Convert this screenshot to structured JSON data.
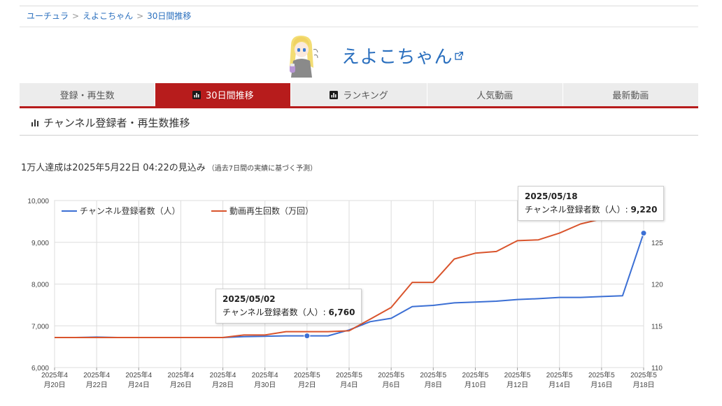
{
  "breadcrumb": {
    "items": [
      "ユーチュラ",
      "えよこちゃん",
      "30日間推移"
    ]
  },
  "channel": {
    "name": "えよこちゃん"
  },
  "tabs": [
    {
      "label": "登録・再生数",
      "icon": ""
    },
    {
      "label": "30日間推移",
      "icon": "bar-chart-icon"
    },
    {
      "label": "ランキング",
      "icon": "bar-chart-icon"
    },
    {
      "label": "人気動画",
      "icon": ""
    },
    {
      "label": "最新動画",
      "icon": ""
    }
  ],
  "section": {
    "title": "チャンネル登録者・再生数推移"
  },
  "forecast": {
    "text": "1万人達成は2025年5月22日 04:22の見込み",
    "note": "（過去7日間の実績に基づく予測）"
  },
  "colors": {
    "accent": "#b71c1c",
    "link": "#2a6fbe",
    "subscribers": "#3b6fd4",
    "views": "#d9542c"
  },
  "tooltips": [
    {
      "date": "2025/05/02",
      "label": "チャンネル登録者数（人）:",
      "value": "6,760"
    },
    {
      "date": "2025/05/18",
      "label": "チャンネル登録者数（人）:",
      "value": "9,220"
    }
  ],
  "chart_data": {
    "type": "line",
    "x": [
      "2025/04/20",
      "2025/04/21",
      "2025/04/22",
      "2025/04/23",
      "2025/04/24",
      "2025/04/25",
      "2025/04/26",
      "2025/04/27",
      "2025/04/28",
      "2025/04/29",
      "2025/04/30",
      "2025/05/01",
      "2025/05/02",
      "2025/05/03",
      "2025/05/04",
      "2025/05/05",
      "2025/05/06",
      "2025/05/07",
      "2025/05/08",
      "2025/05/09",
      "2025/05/10",
      "2025/05/11",
      "2025/05/12",
      "2025/05/13",
      "2025/05/14",
      "2025/05/15",
      "2025/05/16",
      "2025/05/17",
      "2025/05/18"
    ],
    "x_tick_labels": [
      [
        "2025年4",
        "月20日"
      ],
      [
        "2025年4",
        "月22日"
      ],
      [
        "2025年4",
        "月24日"
      ],
      [
        "2025年4",
        "月26日"
      ],
      [
        "2025年4",
        "月28日"
      ],
      [
        "2025年4",
        "月30日"
      ],
      [
        "2025年5",
        "月2日"
      ],
      [
        "2025年5",
        "月4日"
      ],
      [
        "2025年5",
        "月6日"
      ],
      [
        "2025年5",
        "月8日"
      ],
      [
        "2025年5",
        "月10日"
      ],
      [
        "2025年5",
        "月12日"
      ],
      [
        "2025年5",
        "月14日"
      ],
      [
        "2025年5",
        "月16日"
      ],
      [
        "2025年5",
        "月18日"
      ]
    ],
    "y_left": {
      "ylim": [
        6000,
        10000
      ],
      "ticks": [
        6000,
        7000,
        8000,
        9000,
        10000
      ],
      "tick_labels": [
        "6,000",
        "7,000",
        "8,000",
        "9,000",
        "10,000"
      ]
    },
    "y_right": {
      "ylim": [
        110,
        130
      ],
      "ticks": [
        110,
        115,
        120,
        125
      ],
      "tick_labels": [
        "110",
        "115",
        "120",
        "125"
      ]
    },
    "grid": true,
    "legend_position": "top-left",
    "series": [
      {
        "name": "チャンネル登録者数（人）",
        "axis": "left",
        "values": [
          6720,
          6720,
          6730,
          6720,
          6720,
          6720,
          6720,
          6720,
          6720,
          6740,
          6750,
          6760,
          6760,
          6760,
          6900,
          7100,
          7180,
          7460,
          7490,
          7550,
          7570,
          7590,
          7630,
          7650,
          7680,
          7680,
          7700,
          7720,
          9220
        ]
      },
      {
        "name": "動画再生回数（万回）",
        "axis": "right",
        "values": [
          113.6,
          113.6,
          113.6,
          113.6,
          113.6,
          113.6,
          113.6,
          113.6,
          113.6,
          113.9,
          113.9,
          114.3,
          114.3,
          114.3,
          114.4,
          115.8,
          117.2,
          120.2,
          120.2,
          123.0,
          123.7,
          123.9,
          125.2,
          125.3,
          126.1,
          127.2,
          127.8,
          128.3,
          128.3
        ]
      }
    ]
  }
}
